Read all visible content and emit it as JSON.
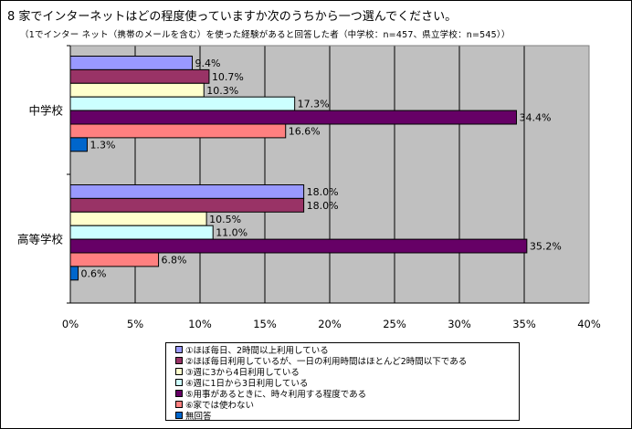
{
  "header": {
    "title": "8 家でインターネットはどの程度使っていますか次のうちから一つ選んでください。",
    "subtitle": "（1でインター ネット（携帯のメールを含む）を使った経験があると回答した者（中学校：n=457、県立学校：n=545））"
  },
  "chart_data": {
    "type": "bar",
    "orientation": "horizontal",
    "categories": [
      "中学校",
      "高等学校"
    ],
    "series": [
      {
        "name": "①ほぼ毎日、2時間以上利用している",
        "color": "#9999ff",
        "values": [
          9.4,
          18.0
        ]
      },
      {
        "name": "②ほぼ毎日利用しているが、一日の利用時間はほとんど2時間以下である",
        "color": "#993366",
        "values": [
          10.7,
          18.0
        ]
      },
      {
        "name": "③週に3から4日利用している",
        "color": "#ffffcc",
        "values": [
          10.3,
          10.5
        ]
      },
      {
        "name": "④週に1日から3日利用している",
        "color": "#ccffff",
        "values": [
          17.3,
          11.0
        ]
      },
      {
        "name": "⑤用事があるときに、時々利用する程度である",
        "color": "#660066",
        "values": [
          34.4,
          35.2
        ]
      },
      {
        "name": "⑥家では使わない",
        "color": "#ff8080",
        "values": [
          16.6,
          6.8
        ]
      },
      {
        "name": "無回答",
        "color": "#0066cc",
        "values": [
          1.3,
          0.6
        ]
      }
    ],
    "data_labels": [
      [
        "9.4%",
        "10.7%",
        "10.3%",
        "17.3%",
        "34.4%",
        "16.6%",
        "1.3%"
      ],
      [
        "18.0%",
        "18.0%",
        "10.5%",
        "11.0%",
        "35.2%",
        "6.8%",
        "0.6%"
      ]
    ],
    "xlim": [
      0,
      40
    ],
    "xticks": [
      0,
      5,
      10,
      15,
      20,
      25,
      30,
      35,
      40
    ],
    "xtick_labels": [
      "0%",
      "5%",
      "10%",
      "15%",
      "20%",
      "25%",
      "30%",
      "35%",
      "40%"
    ],
    "plot_background": "#c0c0c0",
    "grid": true,
    "legend_position": "bottom"
  }
}
